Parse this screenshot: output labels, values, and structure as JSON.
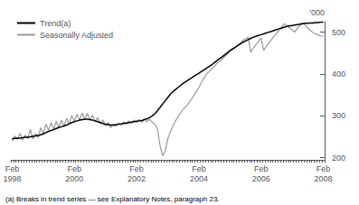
{
  "chart_data": {
    "type": "line",
    "ylabel": "'000",
    "footnote": "(a) Breaks in trend series — see Explanatory Notes, paragraph 23.",
    "legend": "upper left",
    "grid": false,
    "ylim": [
      195,
      525
    ],
    "yticks": [
      200,
      300,
      400,
      500
    ],
    "categories": [
      "Feb\n1998",
      null,
      null,
      null,
      null,
      null,
      null,
      null,
      null,
      null,
      null,
      null,
      null,
      null,
      null,
      null,
      null,
      null,
      null,
      null,
      null,
      null,
      null,
      null,
      "Feb\n2000",
      null,
      null,
      null,
      null,
      null,
      null,
      null,
      null,
      null,
      null,
      null,
      null,
      null,
      null,
      null,
      null,
      null,
      null,
      null,
      null,
      null,
      null,
      null,
      "Feb\n2002",
      null,
      null,
      null,
      null,
      null,
      null,
      null,
      null,
      null,
      null,
      null,
      null,
      null,
      null,
      null,
      null,
      null,
      null,
      null,
      null,
      null,
      null,
      null,
      "Feb\n2004",
      null,
      null,
      null,
      null,
      null,
      null,
      null,
      null,
      null,
      null,
      null,
      null,
      null,
      null,
      null,
      null,
      null,
      null,
      null,
      null,
      null,
      null,
      null,
      "Feb\n2006",
      null,
      null,
      null,
      null,
      null,
      null,
      null,
      null,
      null,
      null,
      null,
      null,
      null,
      null,
      null,
      null,
      null,
      null,
      null,
      null,
      null,
      null,
      null,
      "Feb\n2008"
    ],
    "series": [
      {
        "name": "Trend(a)",
        "color": "#000000",
        "values": [
          245,
          246,
          247,
          247,
          248,
          249,
          249,
          250,
          251,
          252,
          253,
          255,
          257,
          260,
          263,
          265,
          267,
          270,
          272,
          274,
          276,
          278,
          281,
          284,
          286,
          288,
          290,
          291,
          292,
          292,
          291,
          290,
          288,
          286,
          284,
          282,
          280,
          279,
          278,
          278,
          279,
          280,
          281,
          282,
          283,
          284,
          285,
          286,
          287,
          288,
          289,
          291,
          293,
          296,
          300,
          305,
          312,
          320,
          328,
          336,
          344,
          352,
          358,
          363,
          368,
          373,
          378,
          382,
          386,
          390,
          394,
          398,
          402,
          406,
          410,
          414,
          418,
          422,
          427,
          432,
          437,
          441,
          446,
          451,
          456,
          460,
          464,
          468,
          472,
          476,
          479,
          482,
          485,
          488,
          490,
          492,
          494,
          496,
          498,
          500,
          502,
          504,
          506,
          508,
          510,
          512,
          514,
          515,
          516,
          517,
          518,
          519,
          520,
          521,
          521,
          522,
          522,
          523,
          523,
          524,
          524
        ]
      },
      {
        "name": "Seasonally Adjusted",
        "color": "#999999",
        "values": [
          240,
          252,
          244,
          258,
          242,
          254,
          246,
          268,
          245,
          258,
          248,
          272,
          258,
          280,
          266,
          284,
          269,
          287,
          272,
          290,
          276,
          294,
          282,
          300,
          288,
          304,
          290,
          307,
          291,
          306,
          290,
          302,
          286,
          296,
          281,
          290,
          276,
          284,
          272,
          280,
          275,
          282,
          278,
          286,
          280,
          288,
          282,
          290,
          284,
          292,
          285,
          293,
          286,
          292,
          285,
          280,
          270,
          230,
          205,
          215,
          245,
          262,
          276,
          288,
          298,
          308,
          316,
          322,
          330,
          338,
          348,
          358,
          368,
          380,
          390,
          400,
          406,
          413,
          418,
          426,
          430,
          436,
          442,
          448,
          454,
          458,
          463,
          468,
          474,
          480,
          484,
          488,
          452,
          462,
          470,
          478,
          486,
          456,
          466,
          474,
          482,
          490,
          498,
          505,
          513,
          520,
          515,
          510,
          505,
          500,
          510,
          516,
          522,
          516,
          510,
          504,
          499,
          496,
          493,
          491,
          489
        ]
      }
    ]
  }
}
